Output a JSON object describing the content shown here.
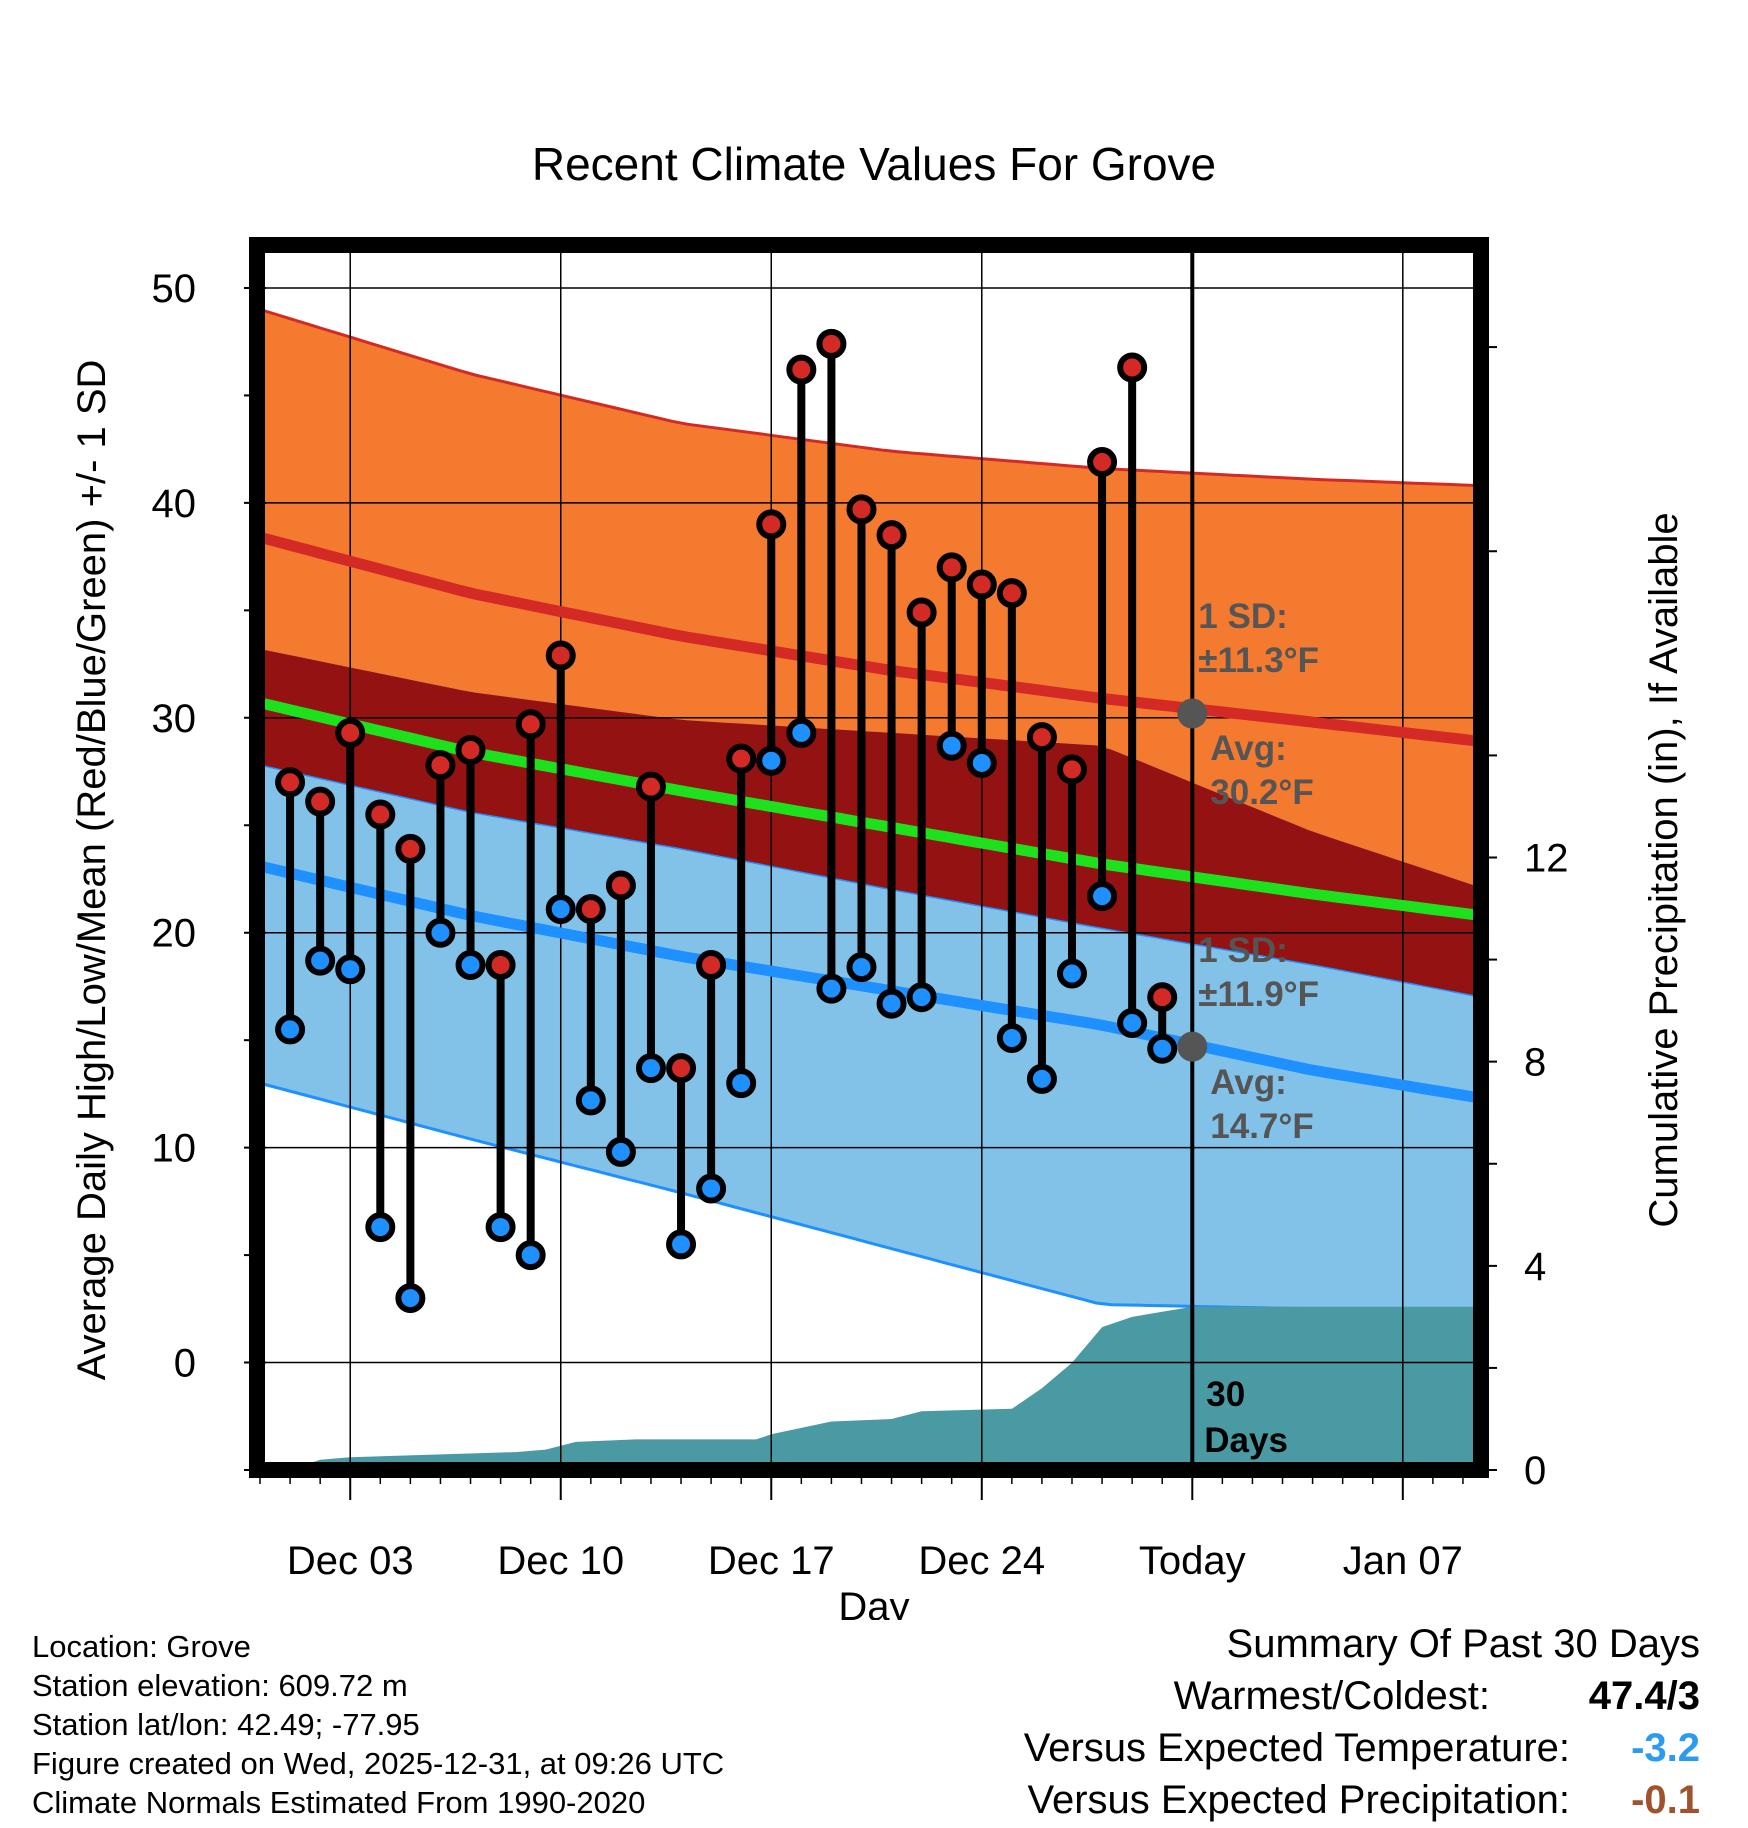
{
  "chart_data": {
    "type": "line",
    "title": "Recent Climate Values For Grove",
    "xlabel": "Day",
    "ylabel_left": "Average Daily High/Low/Mean (Red/Blue/Green) +/- 1 SD",
    "ylabel_right": "Cumulative Precipitation (in), If Available",
    "x_tick_labels": [
      "Dec 03",
      "Dec 10",
      "Dec 17",
      "Dec 24",
      "Today",
      "Jan 07"
    ],
    "x_tick_days": [
      3,
      10,
      17,
      24,
      31,
      38
    ],
    "xlim": [
      -0.1,
      40.6
    ],
    "today_day": 31,
    "ylim_left": [
      -5,
      52
    ],
    "y_ticks_left": [
      0,
      10,
      20,
      30,
      40,
      50
    ],
    "ylim_right": [
      0,
      24
    ],
    "y_ticks_right": [
      0,
      4,
      8,
      12
    ],
    "days": [
      1,
      2,
      3,
      4,
      5,
      6,
      7,
      8,
      9,
      10,
      11,
      12,
      13,
      14,
      15,
      16,
      17,
      18,
      19,
      20,
      21,
      22,
      23,
      24,
      25,
      26,
      27,
      28,
      29,
      30
    ],
    "daily_high": [
      27.0,
      26.1,
      29.3,
      25.5,
      23.9,
      27.8,
      28.5,
      18.5,
      29.7,
      32.9,
      21.1,
      22.2,
      26.8,
      13.7,
      18.5,
      28.1,
      39.0,
      46.2,
      47.4,
      39.7,
      38.5,
      34.9,
      37.0,
      36.2,
      35.8,
      29.1,
      27.6,
      41.9,
      46.3,
      17.0
    ],
    "daily_low": [
      15.5,
      18.7,
      18.3,
      6.3,
      3.0,
      20.0,
      18.5,
      6.3,
      5.0,
      21.1,
      12.2,
      9.8,
      13.7,
      5.5,
      8.1,
      13.0,
      28.0,
      29.3,
      17.4,
      18.4,
      16.7,
      17.0,
      28.7,
      27.9,
      15.1,
      13.2,
      18.1,
      21.7,
      15.8,
      14.6
    ],
    "normal_curve_days": [
      0,
      7,
      14,
      21,
      28,
      35,
      40.6
    ],
    "normal_high": [
      38.4,
      35.8,
      33.8,
      32.2,
      30.9,
      29.8,
      28.9
    ],
    "normal_high_sd_upper": [
      49.0,
      46.0,
      43.7,
      42.4,
      41.6,
      41.1,
      40.8
    ],
    "normal_mean": [
      30.7,
      28.4,
      26.6,
      24.9,
      23.2,
      21.8,
      20.8
    ],
    "normal_low": [
      23.1,
      20.8,
      18.9,
      17.3,
      15.7,
      13.6,
      12.3
    ],
    "normal_low_sd_lower": [
      13.0,
      10.4,
      7.9,
      5.3,
      2.7,
      2.5,
      2.5
    ],
    "precip_days": [
      0,
      1,
      2,
      3,
      8.5,
      9.5,
      10.5,
      12.5,
      16.5,
      17,
      19,
      21,
      22,
      25,
      26,
      27,
      28,
      29,
      30,
      31,
      32,
      40.6
    ],
    "precip_cumulative": [
      0,
      0,
      0.2,
      0.25,
      0.35,
      0.4,
      0.55,
      0.6,
      0.6,
      0.7,
      0.95,
      1.0,
      1.15,
      1.2,
      1.6,
      2.1,
      2.8,
      3.0,
      3.1,
      3.2,
      3.2,
      3.2
    ],
    "annotations": {
      "high_sd_label": "1 SD:",
      "high_sd_value": "±11.3°F",
      "high_avg_label": "Avg:",
      "high_avg_value": "30.2°F",
      "low_sd_label": "1 SD:",
      "low_sd_value": "±11.9°F",
      "low_avg_label": "Avg:",
      "low_avg_value": "14.7°F",
      "days_count": "30",
      "days_word": "Days"
    },
    "today_high_avg": 30.2,
    "today_low_avg": 14.7
  },
  "colors": {
    "high_band": "#f47a2f",
    "overlap_band": "#941212",
    "low_band": "#82c2e8",
    "high_line": "#d42a25",
    "low_line": "#1e90ff",
    "mean_line": "#1ee11e",
    "precip_fill": "#4a9aa3",
    "high_marker": "#d42a25",
    "low_marker": "#1e90ff",
    "annotation_gray": "#555555",
    "temp_anomaly": "#2b9bef",
    "precip_anomaly": "#a0522d"
  },
  "station_info": {
    "location": "Location: Grove",
    "elevation": "Station elevation: 609.72 m",
    "latlon": "Station lat/lon: 42.49; -77.95",
    "created": "Figure created on Wed, 2025-12-31, at 09:26 UTC",
    "normals": "Climate Normals Estimated From 1990-2020"
  },
  "summary": {
    "title": "Summary Of Past 30 Days",
    "warmest_label": "Warmest/Coldest:",
    "warmest_value": "47.4/3",
    "temp_label": "Versus Expected Temperature:",
    "temp_value": "-3.2",
    "precip_label": "Versus Expected Precipitation:",
    "precip_value": "-0.1"
  }
}
